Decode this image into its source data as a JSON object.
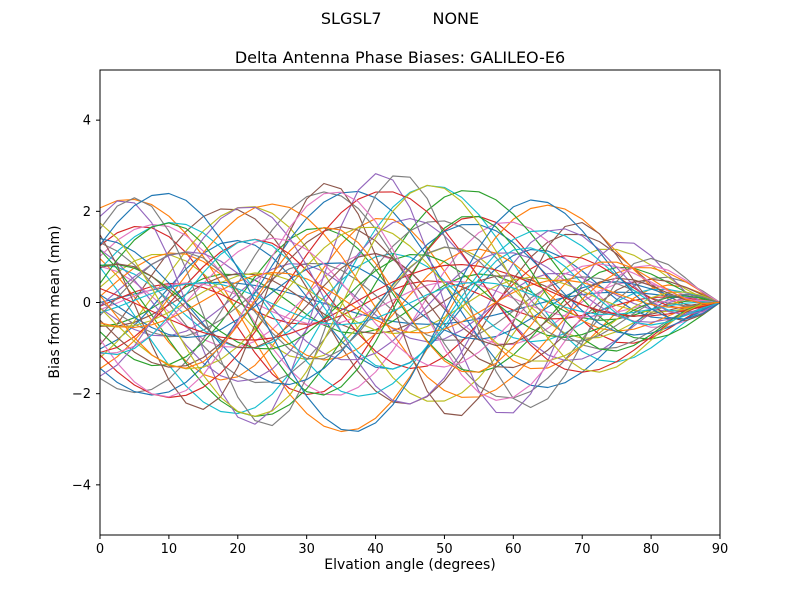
{
  "figure": {
    "suptitle": "SLGSL7          NONE"
  },
  "colors": {
    "background": "#ffffff",
    "axes": "#000000",
    "text": "#000000"
  },
  "chart_data": {
    "type": "line",
    "title": "Delta Antenna Phase Biases: GALILEO-E6",
    "suptitle_left": "SLGSL7",
    "suptitle_right": "NONE",
    "xlabel": "Elvation angle (degrees)",
    "ylabel": "Bias from mean (mm)",
    "xlim": [
      0,
      90
    ],
    "ylim": [
      -5.1,
      5.1
    ],
    "xticks": [
      0,
      10,
      20,
      30,
      40,
      50,
      60,
      70,
      80,
      90
    ],
    "yticks": [
      -4,
      -2,
      0,
      2,
      4
    ],
    "grid": false,
    "legend": false,
    "x_sample_step": 2.5,
    "value_range_mm": [
      -3.3,
      2.6
    ],
    "converge_to_zero_at_deg": 90,
    "palette": [
      "#1f77b4",
      "#ff7f0e",
      "#2ca02c",
      "#d62728",
      "#9467bd",
      "#8c564b",
      "#e377c2",
      "#7f7f7f",
      "#bcbd22",
      "#17becf"
    ],
    "series": [
      {
        "amplitude": 0.5,
        "freq": 1.4,
        "phase": 0.0
      },
      {
        "amplitude": 1.9,
        "freq": 1.9,
        "phase": 2.4
      },
      {
        "amplitude": 0.7,
        "freq": 2.4,
        "phase": 4.8
      },
      {
        "amplitude": 2.1,
        "freq": 1.8,
        "phase": 0.917
      },
      {
        "amplitude": 0.9,
        "freq": 2.3,
        "phase": 3.317
      },
      {
        "amplitude": 2.3,
        "freq": 1.7,
        "phase": 5.717
      },
      {
        "amplitude": 1.1,
        "freq": 2.2,
        "phase": 1.834
      },
      {
        "amplitude": 2.5,
        "freq": 1.6,
        "phase": 4.234
      },
      {
        "amplitude": 1.3,
        "freq": 2.1,
        "phase": 0.35
      },
      {
        "amplitude": 2.7,
        "freq": 1.5,
        "phase": 2.75
      },
      {
        "amplitude": 1.5,
        "freq": 2.0,
        "phase": 5.15
      },
      {
        "amplitude": 2.9,
        "freq": 1.4,
        "phase": 1.267
      },
      {
        "amplitude": 1.7,
        "freq": 1.9,
        "phase": 3.667
      },
      {
        "amplitude": 0.5,
        "freq": 2.4,
        "phase": 6.067
      },
      {
        "amplitude": 1.9,
        "freq": 1.8,
        "phase": 2.184
      },
      {
        "amplitude": 0.7,
        "freq": 2.3,
        "phase": 4.584
      },
      {
        "amplitude": 2.1,
        "freq": 1.7,
        "phase": 0.701
      },
      {
        "amplitude": 0.9,
        "freq": 2.2,
        "phase": 3.101
      },
      {
        "amplitude": 2.3,
        "freq": 1.6,
        "phase": 5.501
      },
      {
        "amplitude": 1.1,
        "freq": 2.1,
        "phase": 1.618
      },
      {
        "amplitude": 2.5,
        "freq": 1.5,
        "phase": 4.018
      },
      {
        "amplitude": 1.3,
        "freq": 2.0,
        "phase": 0.135
      },
      {
        "amplitude": 2.7,
        "freq": 1.4,
        "phase": 2.535
      },
      {
        "amplitude": 1.5,
        "freq": 1.9,
        "phase": 4.935
      },
      {
        "amplitude": 2.9,
        "freq": 2.4,
        "phase": 1.051
      },
      {
        "amplitude": 1.7,
        "freq": 1.8,
        "phase": 3.451
      },
      {
        "amplitude": 0.5,
        "freq": 2.3,
        "phase": 5.851
      },
      {
        "amplitude": 1.9,
        "freq": 1.7,
        "phase": 1.968
      },
      {
        "amplitude": 0.7,
        "freq": 2.2,
        "phase": 4.368
      },
      {
        "amplitude": 2.1,
        "freq": 1.6,
        "phase": 0.485
      },
      {
        "amplitude": 0.9,
        "freq": 2.1,
        "phase": 2.885
      },
      {
        "amplitude": 2.3,
        "freq": 1.5,
        "phase": 5.285
      },
      {
        "amplitude": 1.1,
        "freq": 2.0,
        "phase": 1.402
      },
      {
        "amplitude": 2.5,
        "freq": 1.4,
        "phase": 3.802
      },
      {
        "amplitude": 1.3,
        "freq": 1.9,
        "phase": 6.202
      },
      {
        "amplitude": 2.7,
        "freq": 2.4,
        "phase": 2.319
      },
      {
        "amplitude": 1.5,
        "freq": 1.8,
        "phase": 4.719
      },
      {
        "amplitude": 2.9,
        "freq": 2.3,
        "phase": 0.835
      },
      {
        "amplitude": 1.7,
        "freq": 1.7,
        "phase": 3.235
      },
      {
        "amplitude": 0.5,
        "freq": 2.2,
        "phase": 5.635
      },
      {
        "amplitude": 1.9,
        "freq": 1.6,
        "phase": 1.752
      },
      {
        "amplitude": 0.7,
        "freq": 2.1,
        "phase": 4.152
      },
      {
        "amplitude": 2.1,
        "freq": 2.0,
        "phase": 0.269
      },
      {
        "amplitude": 0.9,
        "freq": 1.4,
        "phase": 2.669
      },
      {
        "amplitude": 2.3,
        "freq": 1.9,
        "phase": 5.069
      },
      {
        "amplitude": 1.1,
        "freq": 2.4,
        "phase": 1.186
      },
      {
        "amplitude": 2.5,
        "freq": 1.8,
        "phase": 3.586
      },
      {
        "amplitude": 1.3,
        "freq": 2.3,
        "phase": 5.986
      },
      {
        "amplitude": 2.7,
        "freq": 1.7,
        "phase": 2.103
      },
      {
        "amplitude": 1.5,
        "freq": 2.2,
        "phase": 4.503
      },
      {
        "amplitude": 2.9,
        "freq": 1.6,
        "phase": 0.619
      },
      {
        "amplitude": 1.7,
        "freq": 2.1,
        "phase": 3.019
      }
    ]
  }
}
